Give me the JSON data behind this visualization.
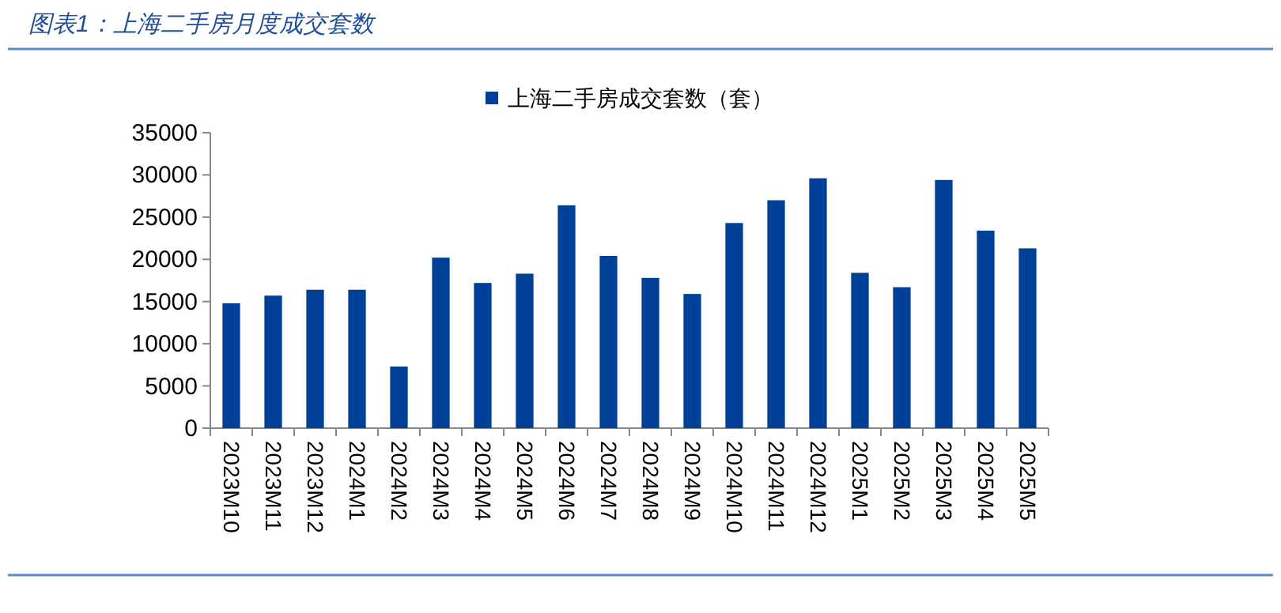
{
  "chart_data": {
    "type": "bar",
    "title": "图表1：上海二手房月度成交套数",
    "categories": [
      "2023M10",
      "2023M11",
      "2023M12",
      "2024M1",
      "2024M2",
      "2024M3",
      "2024M4",
      "2024M5",
      "2024M6",
      "2024M7",
      "2024M8",
      "2024M9",
      "2024M10",
      "2024M11",
      "2024M12",
      "2025M1",
      "2025M2",
      "2025M3",
      "2025M4",
      "2025M5"
    ],
    "series": [
      {
        "name": "上海二手房成交套数（套）",
        "color": "#004098",
        "values": [
          14800,
          15700,
          16400,
          16400,
          7300,
          20200,
          17200,
          18300,
          26400,
          20400,
          17800,
          15900,
          24300,
          27000,
          29600,
          18400,
          16700,
          29400,
          23400,
          21300
        ]
      }
    ],
    "ylim": [
      0,
      35000
    ],
    "yticks": [
      0,
      5000,
      10000,
      15000,
      20000,
      25000,
      30000,
      35000
    ],
    "legend": "top",
    "grid": false
  }
}
